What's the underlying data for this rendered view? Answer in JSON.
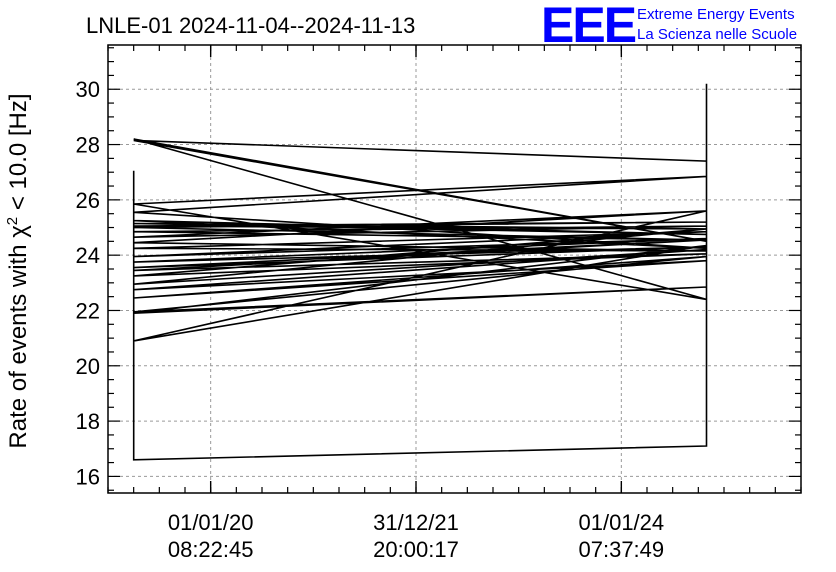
{
  "header": {
    "title": "LNLE-01 2024-11-04--2024-11-13"
  },
  "logo": {
    "mark": "EEE",
    "line1": "Extreme Energy Events",
    "line2": "La Scienza nelle Scuole",
    "color": "#0000ff"
  },
  "chart_data": {
    "type": "line",
    "title": "LNLE-01 2024-11-04--2024-11-13",
    "ylabel": "Rate of events with χ² < 10.0 [Hz]",
    "ylabel_parts": {
      "before": "Rate of events with χ",
      "sup": "2",
      "after": " < 10.0 [Hz]"
    },
    "xlabel": "",
    "ylim": [
      15.4,
      31.6
    ],
    "yticks": [
      16,
      18,
      20,
      22,
      24,
      26,
      28,
      30
    ],
    "xlim": [
      2019.0,
      2025.75
    ],
    "xticks": [
      {
        "x": 2020.0,
        "line1": "01/01/20",
        "line2": "08:22:45"
      },
      {
        "x": 2022.0,
        "line1": "31/12/21",
        "line2": "20:00:17"
      },
      {
        "x": 2024.0,
        "line1": "01/01/24",
        "line2": "07:37:49"
      }
    ],
    "minor_x_step": 0.25,
    "grid": true,
    "line_color": "#000000",
    "series": [
      {
        "x": [
          2019.25,
          2019.25,
          2024.83,
          2024.83,
          2019.25,
          2024.83,
          2019.25,
          2024.83,
          2019.25,
          2024.83,
          2019.25,
          2024.83,
          2019.25,
          2024.83,
          2019.25,
          2024.83,
          2019.25,
          2024.83,
          2019.25,
          2024.83,
          2019.25,
          2024.83,
          2019.25,
          2024.83,
          2019.25,
          2024.83,
          2019.25,
          2024.83,
          2019.25,
          2024.83,
          2019.25,
          2024.83,
          2019.25,
          2024.83,
          2019.25,
          2024.83,
          2019.25,
          2024.83,
          2019.25,
          2024.83,
          2019.25,
          2024.83,
          2019.25,
          2024.83,
          2019.25,
          2024.83,
          2019.25,
          2024.83,
          2019.25,
          2024.83,
          2024.83,
          2024.83,
          2024.83,
          2024.83,
          2024.83,
          2024.83
        ],
        "y": [
          27.05,
          16.6,
          17.1,
          27.4,
          28.15,
          24.5,
          28.2,
          22.4,
          25.85,
          26.85,
          25.55,
          24.25,
          25.25,
          24.75,
          25.15,
          24.95,
          25.05,
          25.2,
          25.0,
          24.55,
          24.85,
          25.05,
          24.65,
          25.6,
          24.45,
          24.15,
          24.25,
          24.85,
          23.95,
          24.6,
          23.75,
          24.3,
          23.55,
          24.55,
          23.45,
          24.05,
          23.25,
          24.95,
          22.95,
          24.2,
          22.75,
          23.8,
          22.45,
          23.95,
          21.95,
          22.85,
          21.9,
          24.35,
          20.9,
          25.6,
          30.2,
          17.4,
          26.3,
          17.6,
          21.5,
          17.8
        ]
      }
    ]
  }
}
